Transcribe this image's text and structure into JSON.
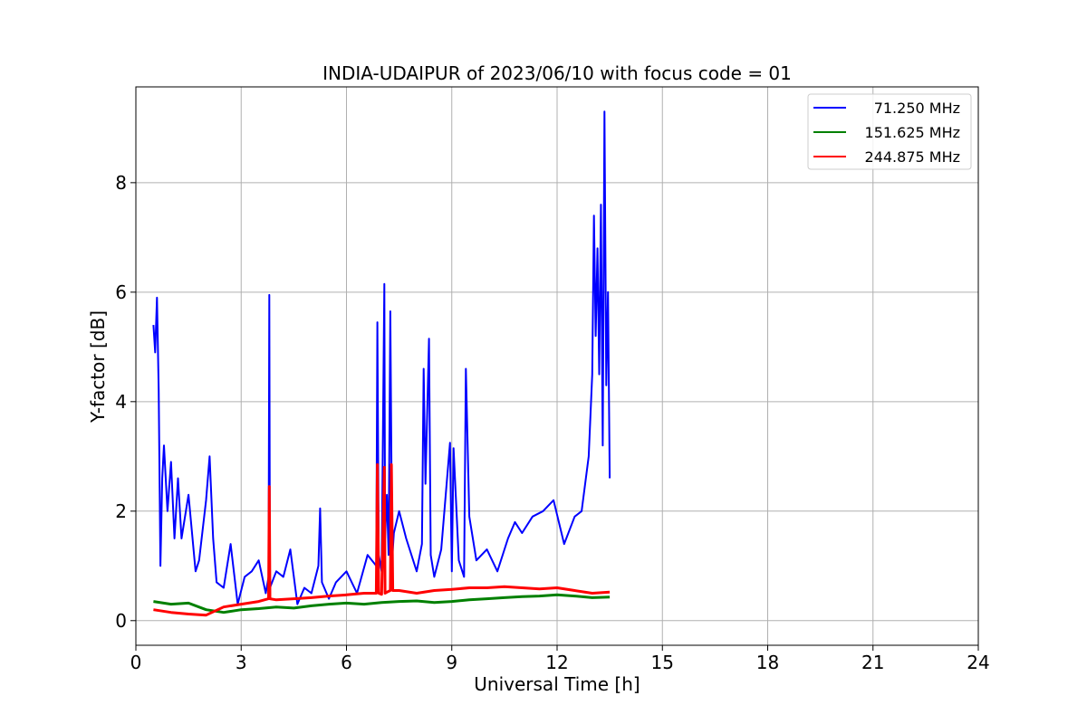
{
  "chart_data": {
    "type": "line",
    "title": "INDIA-UDAIPUR of 2023/06/10 with focus code = 01",
    "xlabel": "Universal Time [h]",
    "ylabel": "Y-factor [dB]",
    "xlim": [
      0,
      24
    ],
    "ylim": [
      -0.45,
      9.75
    ],
    "xticks": [
      0,
      3,
      6,
      9,
      12,
      15,
      18,
      21,
      24
    ],
    "xtick_labels": [
      "0",
      "3",
      "6",
      "9",
      "12",
      "15",
      "18",
      "21",
      "24"
    ],
    "yticks": [
      0,
      2,
      4,
      6,
      8
    ],
    "ytick_labels": [
      "0",
      "2",
      "4",
      "6",
      "8"
    ],
    "grid": true,
    "legend_position": "top-right",
    "series": [
      {
        "name": "71.250 MHz",
        "color": "#0000ff",
        "x": [
          0.5,
          0.55,
          0.6,
          0.65,
          0.7,
          0.75,
          0.8,
          0.9,
          1.0,
          1.1,
          1.2,
          1.3,
          1.5,
          1.7,
          1.8,
          2.0,
          2.1,
          2.2,
          2.3,
          2.5,
          2.7,
          2.9,
          3.1,
          3.3,
          3.5,
          3.7,
          3.78,
          3.8,
          3.82,
          4.0,
          4.2,
          4.4,
          4.6,
          4.8,
          5.0,
          5.2,
          5.25,
          5.3,
          5.5,
          5.7,
          6.0,
          6.3,
          6.6,
          6.85,
          6.88,
          6.92,
          7.0,
          7.08,
          7.1,
          7.15,
          7.2,
          7.25,
          7.3,
          7.35,
          7.5,
          7.7,
          8.0,
          8.15,
          8.2,
          8.25,
          8.35,
          8.4,
          8.5,
          8.7,
          8.95,
          9.0,
          9.05,
          9.2,
          9.35,
          9.4,
          9.5,
          9.7,
          10.0,
          10.3,
          10.6,
          10.8,
          11.0,
          11.3,
          11.6,
          11.9,
          12.2,
          12.5,
          12.7,
          12.9,
          13.0,
          13.05,
          13.1,
          13.15,
          13.2,
          13.25,
          13.3,
          13.35,
          13.4,
          13.45,
          13.5
        ],
        "y": [
          5.4,
          4.9,
          5.9,
          4.2,
          1.0,
          2.6,
          3.2,
          2.0,
          2.9,
          1.5,
          2.6,
          1.5,
          2.3,
          0.9,
          1.1,
          2.2,
          3.0,
          1.5,
          0.7,
          0.6,
          1.4,
          0.3,
          0.8,
          0.9,
          1.1,
          0.5,
          0.8,
          5.95,
          0.6,
          0.9,
          0.8,
          1.3,
          0.3,
          0.6,
          0.5,
          1.0,
          2.05,
          0.7,
          0.4,
          0.7,
          0.9,
          0.5,
          1.2,
          1.0,
          5.45,
          1.2,
          0.9,
          6.15,
          1.5,
          2.3,
          1.2,
          5.65,
          1.1,
          1.6,
          2.0,
          1.5,
          0.9,
          1.4,
          4.6,
          2.5,
          5.15,
          1.2,
          0.8,
          1.3,
          3.25,
          0.9,
          3.15,
          1.1,
          0.8,
          4.6,
          1.9,
          1.1,
          1.3,
          0.9,
          1.5,
          1.8,
          1.6,
          1.9,
          2.0,
          2.2,
          1.4,
          1.9,
          2.0,
          3.0,
          4.5,
          7.4,
          5.2,
          6.8,
          4.5,
          7.6,
          3.2,
          9.3,
          4.3,
          6.0,
          2.6
        ]
      },
      {
        "name": "151.625 MHz",
        "color": "#008000",
        "x": [
          0.5,
          1.0,
          1.5,
          2.0,
          2.5,
          3.0,
          3.5,
          4.0,
          4.5,
          5.0,
          5.5,
          6.0,
          6.5,
          7.0,
          7.5,
          8.0,
          8.5,
          9.0,
          9.5,
          10.0,
          10.5,
          11.0,
          11.5,
          12.0,
          12.5,
          13.0,
          13.5
        ],
        "y": [
          0.35,
          0.3,
          0.32,
          0.2,
          0.15,
          0.2,
          0.22,
          0.25,
          0.23,
          0.27,
          0.3,
          0.32,
          0.3,
          0.33,
          0.35,
          0.36,
          0.33,
          0.35,
          0.38,
          0.4,
          0.42,
          0.44,
          0.45,
          0.47,
          0.45,
          0.42,
          0.43
        ]
      },
      {
        "name": "244.875 MHz",
        "color": "#ff0000",
        "x": [
          0.5,
          1.0,
          1.5,
          2.0,
          2.5,
          3.0,
          3.5,
          3.78,
          3.8,
          3.82,
          4.0,
          4.5,
          5.0,
          5.5,
          6.0,
          6.5,
          6.85,
          6.88,
          6.92,
          7.0,
          7.08,
          7.1,
          7.15,
          7.25,
          7.28,
          7.32,
          7.5,
          8.0,
          8.5,
          9.0,
          9.5,
          10.0,
          10.5,
          11.0,
          11.5,
          12.0,
          12.5,
          13.0,
          13.5
        ],
        "y": [
          0.2,
          0.15,
          0.12,
          0.1,
          0.25,
          0.3,
          0.35,
          0.4,
          2.45,
          0.4,
          0.38,
          0.4,
          0.42,
          0.45,
          0.47,
          0.5,
          0.5,
          2.85,
          0.5,
          0.48,
          2.8,
          0.5,
          0.52,
          0.55,
          2.85,
          0.55,
          0.55,
          0.5,
          0.55,
          0.57,
          0.6,
          0.6,
          0.62,
          0.6,
          0.58,
          0.6,
          0.55,
          0.5,
          0.52
        ]
      }
    ]
  }
}
